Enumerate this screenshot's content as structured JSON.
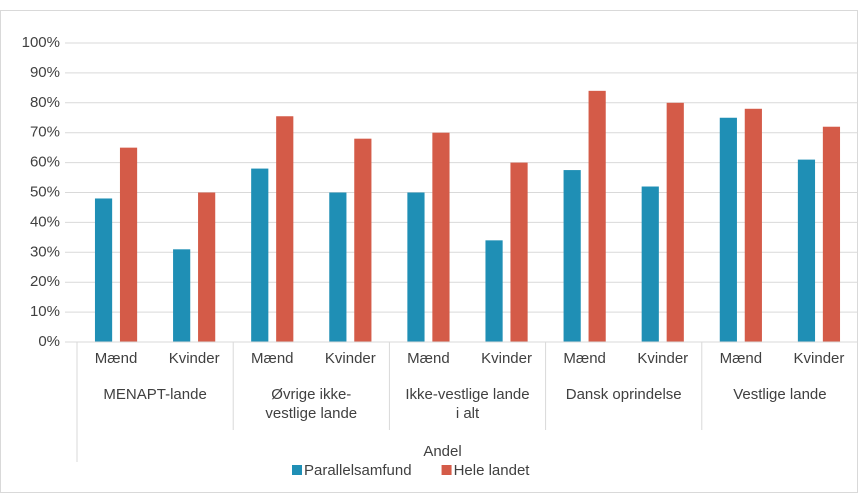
{
  "chart_data": {
    "type": "bar",
    "axis_title": "Andel",
    "categories": [
      "Mænd",
      "Kvinder",
      "Mænd",
      "Kvinder",
      "Mænd",
      "Kvinder",
      "Mænd",
      "Kvinder",
      "Mænd",
      "Kvinder"
    ],
    "groups": [
      {
        "lines": [
          "MENAPT-lande"
        ]
      },
      {
        "lines": [
          "Øvrige ikke-",
          "vestlige lande"
        ]
      },
      {
        "lines": [
          "Ikke-vestlige lande",
          "i alt"
        ]
      },
      {
        "lines": [
          "Dansk oprindelse"
        ]
      },
      {
        "lines": [
          "Vestlige lande"
        ]
      }
    ],
    "series": [
      {
        "name": "Parallelsamfund",
        "color": "#1f8fb5",
        "values": [
          48,
          31,
          58,
          50,
          50,
          34,
          57.5,
          52,
          75,
          61
        ]
      },
      {
        "name": "Hele landet",
        "color": "#d45b48",
        "values": [
          65,
          50,
          75.5,
          68,
          70,
          60,
          84,
          80,
          78,
          72
        ]
      }
    ],
    "ylim": [
      0,
      100
    ],
    "yticks": [
      {
        "value": 0,
        "label": "0%"
      },
      {
        "value": 10,
        "label": "10%"
      },
      {
        "value": 20,
        "label": "20%"
      },
      {
        "value": 30,
        "label": "30%"
      },
      {
        "value": 40,
        "label": "40%"
      },
      {
        "value": 50,
        "label": "50%"
      },
      {
        "value": 60,
        "label": "60%"
      },
      {
        "value": 70,
        "label": "70%"
      },
      {
        "value": 80,
        "label": "80%"
      },
      {
        "value": 90,
        "label": "90%"
      },
      {
        "value": 100,
        "label": "100%"
      }
    ],
    "grid": true,
    "legend": "bottom"
  }
}
